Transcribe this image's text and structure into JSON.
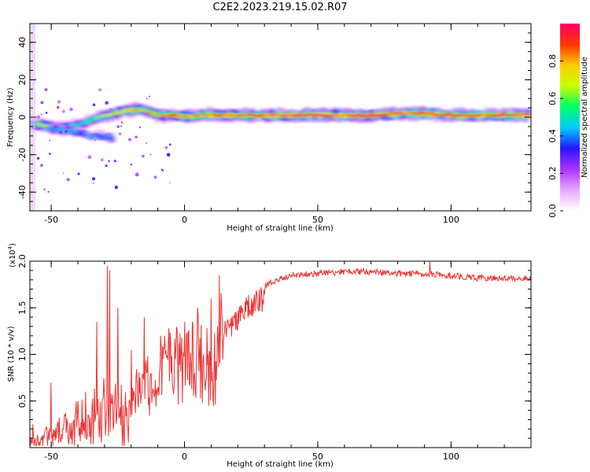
{
  "chart_data": [
    {
      "type": "heatmap",
      "title": "C2E2.2023.219.15.02.R07",
      "xlabel": "Height of straight line (km)",
      "ylabel": "Frequency (Hz)",
      "xlim": [
        -58,
        130
      ],
      "ylim": [
        -50,
        50
      ],
      "xticks": [
        -50,
        0,
        50,
        100
      ],
      "yticks": [
        -40,
        -20,
        0,
        20,
        40
      ],
      "colorbar": {
        "label": "Normalized spectral amplitude",
        "range": [
          0,
          1
        ],
        "ticks": [
          0.0,
          0.2,
          0.4,
          0.6,
          0.8
        ],
        "tick_labels": [
          "0.0",
          "0.2",
          "0.4",
          "0.6",
          "0.8"
        ],
        "colors": [
          "#ffffff",
          "#e8a8ff",
          "#aa33ff",
          "#2a14ff",
          "#00ccff",
          "#00ff66",
          "#c8ff00",
          "#ffcc00",
          "#ff3300",
          "#ff0066"
        ]
      },
      "ridge": [
        {
          "x": -57,
          "y": -4,
          "a": 0.5
        },
        {
          "x": -54,
          "y": -4,
          "a": 0.7
        },
        {
          "x": -50,
          "y": -5,
          "a": 0.6
        },
        {
          "x": -47,
          "y": -6,
          "a": 0.55
        },
        {
          "x": -44,
          "y": -5,
          "a": 0.5
        },
        {
          "x": -40,
          "y": -4,
          "a": 0.5
        },
        {
          "x": -36,
          "y": -2,
          "a": 0.55
        },
        {
          "x": -32,
          "y": 0,
          "a": 0.6
        },
        {
          "x": -28,
          "y": 1,
          "a": 0.65
        },
        {
          "x": -24,
          "y": 3,
          "a": 0.75
        },
        {
          "x": -20,
          "y": 4,
          "a": 0.8
        },
        {
          "x": -16,
          "y": 4,
          "a": 0.75
        },
        {
          "x": -12,
          "y": 2,
          "a": 0.75
        },
        {
          "x": -8,
          "y": 1,
          "a": 0.8
        },
        {
          "x": -4,
          "y": 1,
          "a": 0.8
        },
        {
          "x": 0,
          "y": 0,
          "a": 0.85
        },
        {
          "x": 5,
          "y": 1,
          "a": 0.85
        },
        {
          "x": 10,
          "y": 1,
          "a": 0.85
        },
        {
          "x": 15,
          "y": 1,
          "a": 0.85
        },
        {
          "x": 20,
          "y": 1,
          "a": 0.85
        },
        {
          "x": 30,
          "y": 1,
          "a": 0.88
        },
        {
          "x": 40,
          "y": 1,
          "a": 0.9
        },
        {
          "x": 50,
          "y": 1,
          "a": 0.92
        },
        {
          "x": 60,
          "y": 1,
          "a": 0.92
        },
        {
          "x": 70,
          "y": 1,
          "a": 0.9
        },
        {
          "x": 80,
          "y": 2,
          "a": 0.9
        },
        {
          "x": 90,
          "y": 2,
          "a": 0.92
        },
        {
          "x": 100,
          "y": 1,
          "a": 0.9
        },
        {
          "x": 110,
          "y": 1,
          "a": 0.9
        },
        {
          "x": 120,
          "y": 1,
          "a": 0.9
        },
        {
          "x": 130,
          "y": 1,
          "a": 0.9
        }
      ],
      "branch": [
        {
          "x": -50,
          "y": -6,
          "a": 0.5
        },
        {
          "x": -45,
          "y": -7,
          "a": 0.5
        },
        {
          "x": -40,
          "y": -8,
          "a": 0.45
        },
        {
          "x": -35,
          "y": -10,
          "a": 0.45
        },
        {
          "x": -30,
          "y": -10,
          "a": 0.5
        },
        {
          "x": -26,
          "y": -12,
          "a": 0.5
        }
      ]
    },
    {
      "type": "line",
      "xlabel": "Height of straight line (km)",
      "ylabel": "SNR (10 * v/v)",
      "multiplier": "(x10",
      "multiplier_exp": "4",
      "xlim": [
        -58,
        130
      ],
      "ylim": [
        0,
        20000
      ],
      "xticks": [
        -50,
        0,
        50,
        100
      ],
      "yticks": [
        5000,
        10000,
        15000,
        20000
      ],
      "ytick_labels": [
        "0.5",
        "1.0",
        "1.5",
        "2.0"
      ],
      "color": "#ee3333",
      "envelope": [
        {
          "x": -58,
          "y": 1000
        },
        {
          "x": -50,
          "y": 2000
        },
        {
          "x": -45,
          "y": 3000
        },
        {
          "x": -40,
          "y": 3500
        },
        {
          "x": -35,
          "y": 4000
        },
        {
          "x": -30,
          "y": 5000
        },
        {
          "x": -27,
          "y": 6000
        },
        {
          "x": -25,
          "y": 4500
        },
        {
          "x": -20,
          "y": 6000
        },
        {
          "x": -15,
          "y": 8000
        },
        {
          "x": -10,
          "y": 9500
        },
        {
          "x": -5,
          "y": 10500
        },
        {
          "x": 0,
          "y": 11000
        },
        {
          "x": 5,
          "y": 11500
        },
        {
          "x": 8,
          "y": 11000
        },
        {
          "x": 10,
          "y": 9000
        },
        {
          "x": 13,
          "y": 13000
        },
        {
          "x": 18,
          "y": 14500
        },
        {
          "x": 22,
          "y": 16000
        },
        {
          "x": 27,
          "y": 17000
        },
        {
          "x": 32,
          "y": 18000
        },
        {
          "x": 40,
          "y": 18800
        },
        {
          "x": 50,
          "y": 19000
        },
        {
          "x": 60,
          "y": 19200
        },
        {
          "x": 70,
          "y": 19200
        },
        {
          "x": 80,
          "y": 19000
        },
        {
          "x": 90,
          "y": 19000
        },
        {
          "x": 100,
          "y": 18800
        },
        {
          "x": 110,
          "y": 18500
        },
        {
          "x": 120,
          "y": 18500
        },
        {
          "x": 130,
          "y": 18500
        }
      ],
      "spikes": [
        {
          "x": -57,
          "y": 2500
        },
        {
          "x": -50,
          "y": 7000
        },
        {
          "x": -45,
          "y": 3500
        },
        {
          "x": -40,
          "y": 5000
        },
        {
          "x": -37,
          "y": 6000
        },
        {
          "x": -33,
          "y": 13500
        },
        {
          "x": -29,
          "y": 19500
        },
        {
          "x": -28,
          "y": 19000
        },
        {
          "x": -25,
          "y": 15000
        },
        {
          "x": -20,
          "y": 10500
        },
        {
          "x": -15,
          "y": 14000
        },
        {
          "x": -9,
          "y": 12000
        },
        {
          "x": 0,
          "y": 13500
        },
        {
          "x": 5,
          "y": 15000
        },
        {
          "x": 9,
          "y": 4500
        },
        {
          "x": 10,
          "y": 16000
        },
        {
          "x": 13,
          "y": 18500
        },
        {
          "x": 92,
          "y": 20000
        }
      ]
    }
  ]
}
